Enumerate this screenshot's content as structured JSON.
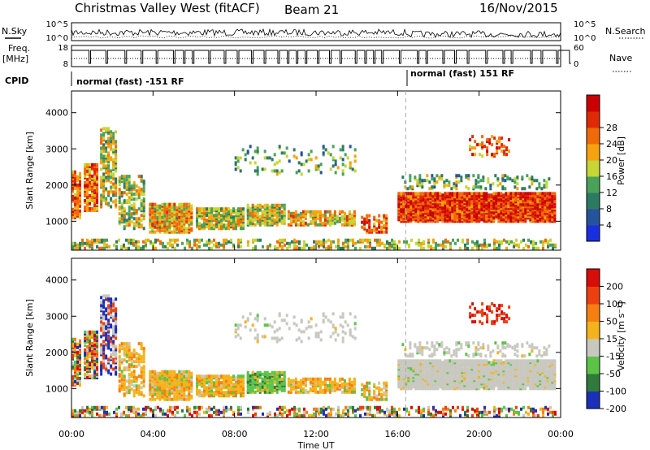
{
  "header": {
    "station": "Christmas Valley West (fitACF)",
    "beam": "Beam 21",
    "date": "16/Nov/2015"
  },
  "side_labels": {
    "n_sky": "N.Sky",
    "n_search": "N.Search",
    "freq": "Freq.",
    "freq_unit": "[MHz]",
    "nave": "Nave",
    "cpid": "CPID"
  },
  "cpid_modes": [
    "normal (fast) -151 RF",
    "normal (fast) 151 RF"
  ],
  "colors": {
    "power": [
      "#1a2ee0",
      "#26539e",
      "#2d7a62",
      "#4aa25a",
      "#c5d636",
      "#f4a30e",
      "#f06a08",
      "#e02a06",
      "#cc0000"
    ],
    "velocity": [
      "#1c2fb8",
      "#2f7a3c",
      "#5bc447",
      "#c8c8c0",
      "#f4b31c",
      "#f57f10",
      "#ec4010",
      "#d80c08"
    ]
  },
  "chart_data": [
    {
      "type": "line",
      "name": "noise",
      "ylabel_left": "N.Sky",
      "ylabel_right": "N.Search",
      "yticks_left": [
        "10^5",
        "10^0"
      ],
      "yticks_right": [
        "10^5",
        "10^0"
      ]
    },
    {
      "type": "line",
      "name": "frequency",
      "ylabel_left": "Freq. [MHz]",
      "ylabel_right": "Nave",
      "yticks_left": [
        "18",
        "8"
      ],
      "yticks_right": [
        "60",
        "0"
      ]
    },
    {
      "type": "heatmap",
      "name": "power",
      "ylabel": "Slant Range [km]",
      "yticks": [
        "1000",
        "2000",
        "3000",
        "4000"
      ],
      "ylim": [
        200,
        4600
      ],
      "colorbar_label": "Power [dB]",
      "colorbar_ticks": [
        "4",
        "8",
        "12",
        "16",
        "20",
        "24",
        "28"
      ]
    },
    {
      "type": "heatmap",
      "name": "velocity",
      "ylabel": "Slant Range [km]",
      "yticks": [
        "1000",
        "2000",
        "3000",
        "4000"
      ],
      "ylim": [
        200,
        4600
      ],
      "colorbar_label": "Velocity [m s⁻¹]",
      "colorbar_ticks": [
        "200",
        "100",
        "50",
        "15",
        "-15",
        "-50",
        "-100",
        "-200"
      ]
    }
  ],
  "time_axis": {
    "label": "Time UT",
    "ticks": [
      "00:00",
      "04:00",
      "08:00",
      "12:00",
      "16:00",
      "20:00",
      "00:00"
    ],
    "hours": [
      0,
      4,
      8,
      12,
      16,
      20,
      24
    ],
    "mode_change_hour": 16.4
  }
}
